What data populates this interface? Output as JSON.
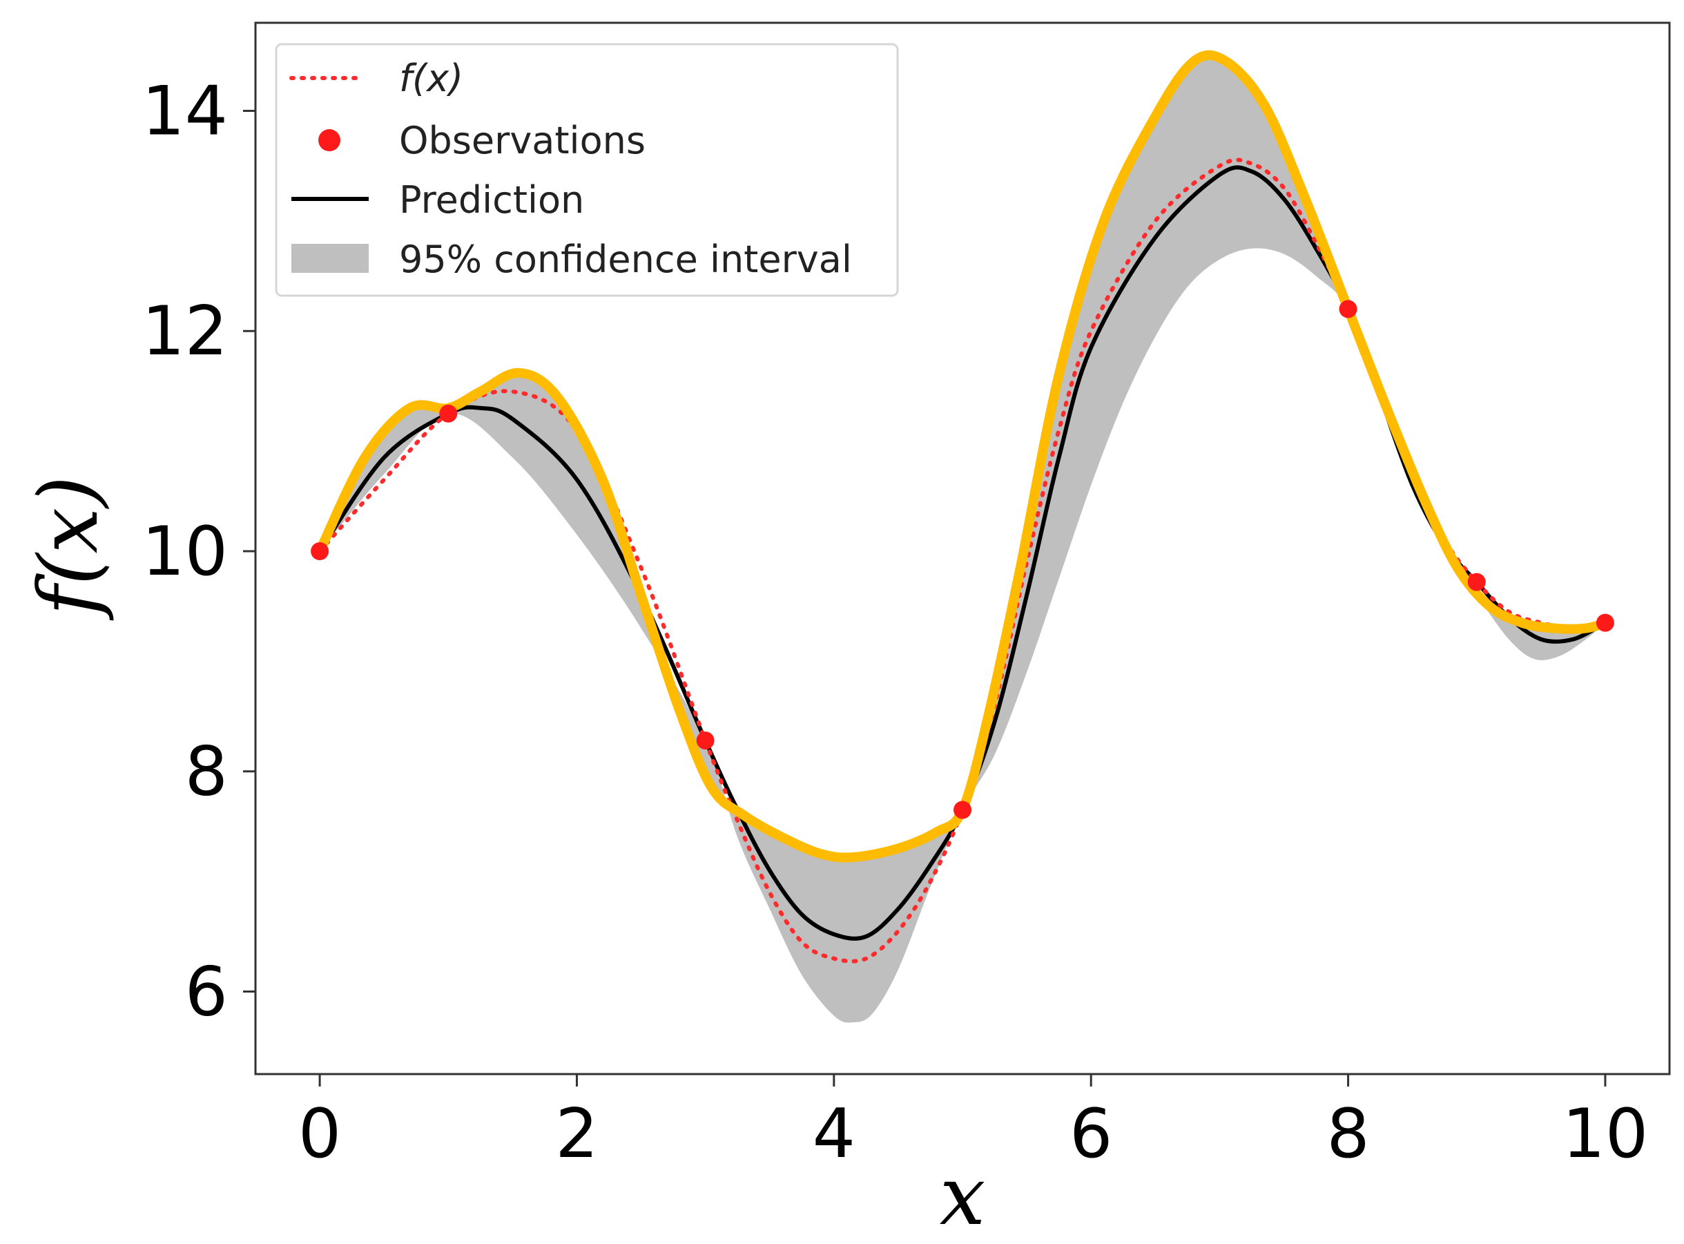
{
  "chart_data": {
    "type": "line",
    "title": "",
    "xlabel": "x",
    "ylabel": "f(x)",
    "xlim": [
      -0.5,
      10.5
    ],
    "ylim": [
      5.25,
      14.8
    ],
    "xticks": [
      0,
      2,
      4,
      6,
      8,
      10
    ],
    "yticks": [
      6,
      8,
      10,
      12,
      14
    ],
    "grid": false,
    "legend_position": "top-left",
    "legend": [
      {
        "key": "fx",
        "label": "f(x)"
      },
      {
        "key": "obs",
        "label": "Observations"
      },
      {
        "key": "pred",
        "label": "Prediction"
      },
      {
        "key": "ci",
        "label": "95% confidence interval"
      }
    ],
    "colors": {
      "fx": "#ff2a2a",
      "obs": "#ff1a1a",
      "pred": "#000000",
      "ci": "#bfbfbf",
      "yellow": "#ffbb00",
      "axis": "#333333"
    },
    "observations": {
      "x": [
        0,
        1,
        3,
        5,
        8,
        9,
        10
      ],
      "y": [
        10.0,
        11.25,
        8.28,
        7.65,
        12.2,
        9.72,
        9.35
      ]
    },
    "series": [
      {
        "name": "f(x)",
        "style": "dotted",
        "x": [
          0,
          0.5,
          1,
          1.5,
          2,
          2.5,
          3,
          3.25,
          3.5,
          3.75,
          4,
          4.25,
          4.5,
          4.75,
          5,
          5.25,
          5.5,
          5.75,
          6,
          6.5,
          7,
          7.25,
          7.5,
          7.75,
          8,
          8.25,
          8.5,
          8.75,
          9,
          9.25,
          9.5,
          9.75,
          10
        ],
        "y": [
          10.0,
          10.65,
          11.25,
          11.45,
          11.1,
          9.85,
          8.28,
          7.55,
          6.9,
          6.45,
          6.3,
          6.3,
          6.55,
          7.0,
          7.65,
          8.6,
          9.9,
          11.1,
          12.0,
          13.0,
          13.5,
          13.52,
          13.3,
          12.8,
          12.2,
          11.4,
          10.7,
          10.1,
          9.72,
          9.45,
          9.35,
          9.3,
          9.35
        ]
      },
      {
        "name": "Prediction",
        "style": "solid",
        "x": [
          0,
          0.5,
          1,
          1.25,
          1.5,
          2,
          2.5,
          3,
          3.25,
          3.5,
          3.75,
          4,
          4.25,
          4.5,
          4.75,
          5,
          5.25,
          5.5,
          5.75,
          6,
          6.5,
          7,
          7.25,
          7.5,
          7.75,
          8,
          8.25,
          8.5,
          8.75,
          9,
          9.25,
          9.5,
          9.75,
          10
        ],
        "y": [
          10.0,
          10.85,
          11.25,
          11.3,
          11.2,
          10.65,
          9.6,
          8.28,
          7.65,
          7.1,
          6.7,
          6.52,
          6.5,
          6.75,
          7.15,
          7.65,
          8.45,
          9.6,
          10.85,
          11.85,
          12.85,
          13.42,
          13.45,
          13.2,
          12.75,
          12.2,
          11.4,
          10.6,
          10.05,
          9.72,
          9.4,
          9.2,
          9.2,
          9.35
        ]
      },
      {
        "name": "Upper bound",
        "style": "thick",
        "x": [
          0,
          0.35,
          0.7,
          1,
          1.25,
          1.55,
          1.85,
          2.2,
          2.5,
          2.8,
          3.05,
          3.3,
          3.6,
          3.9,
          4.15,
          4.5,
          4.8,
          5,
          5.2,
          5.45,
          5.75,
          6.1,
          6.5,
          6.8,
          7.05,
          7.35,
          7.65,
          8,
          8.3,
          8.6,
          8.85,
          9.1,
          9.35,
          9.6,
          9.85,
          10
        ],
        "y": [
          10.0,
          10.85,
          11.3,
          11.3,
          11.45,
          11.62,
          11.4,
          10.65,
          9.6,
          8.55,
          7.85,
          7.6,
          7.4,
          7.25,
          7.22,
          7.3,
          7.45,
          7.65,
          8.5,
          9.85,
          11.6,
          13.0,
          13.95,
          14.45,
          14.45,
          14.05,
          13.25,
          12.2,
          11.3,
          10.45,
          9.85,
          9.5,
          9.35,
          9.3,
          9.3,
          9.35
        ]
      },
      {
        "name": "Lower bound",
        "style": "fill",
        "x": [
          0,
          0.5,
          1,
          1.5,
          2,
          2.5,
          3,
          3.25,
          3.5,
          3.75,
          4,
          4.15,
          4.3,
          4.5,
          4.75,
          5,
          5.25,
          5.5,
          5.75,
          6,
          6.25,
          6.5,
          6.75,
          7,
          7.25,
          7.5,
          7.75,
          8,
          8.25,
          8.5,
          8.75,
          9,
          9.25,
          9.45,
          9.65,
          9.85,
          10
        ],
        "y": [
          10.0,
          10.7,
          11.25,
          10.85,
          10.15,
          9.3,
          8.28,
          7.4,
          6.75,
          6.15,
          5.78,
          5.72,
          5.8,
          6.2,
          6.95,
          7.65,
          8.15,
          8.9,
          9.75,
          10.6,
          11.35,
          11.95,
          12.4,
          12.65,
          12.75,
          12.7,
          12.5,
          12.2,
          11.45,
          10.65,
          10.0,
          9.6,
          9.2,
          9.02,
          9.05,
          9.2,
          9.35
        ]
      }
    ]
  }
}
